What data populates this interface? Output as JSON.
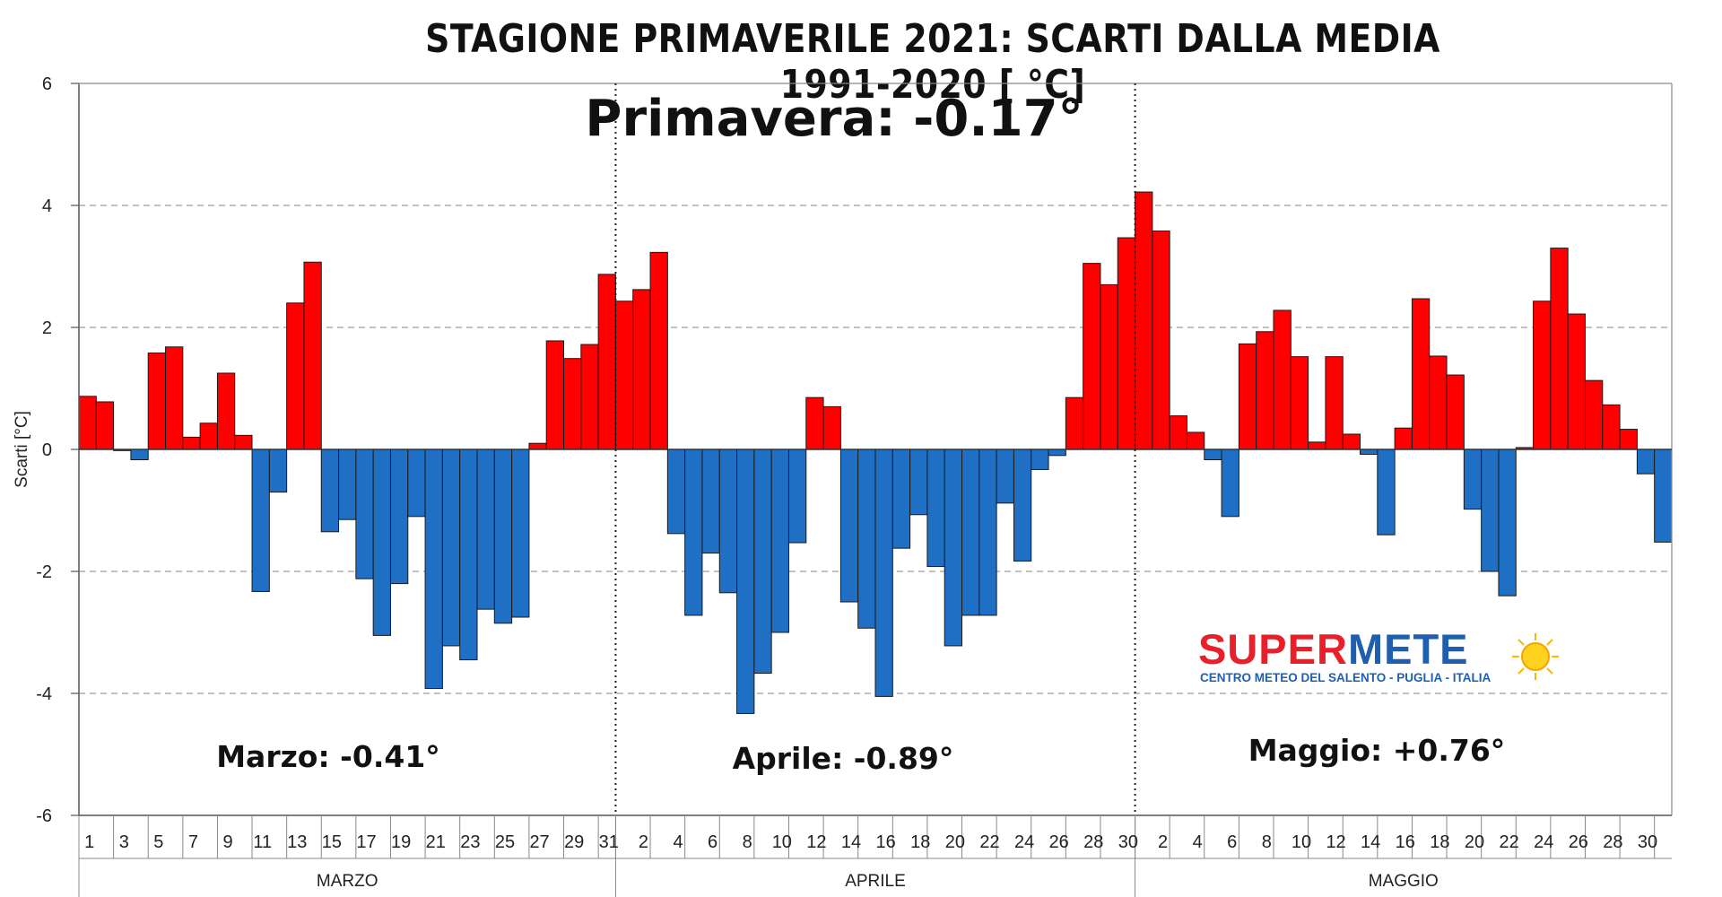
{
  "chart_data": {
    "type": "bar",
    "title": "STAGIONE PRIMAVERILE 2021: SCARTI DALLA MEDIA 1991-2020 [ °C]",
    "ylabel": "Scarti [°C]",
    "xlabel": "",
    "ylim": [
      -6,
      6
    ],
    "yticks": [
      -6,
      -4,
      -2,
      0,
      2,
      4,
      6
    ],
    "grid": "horizontal dashed",
    "positive_color": "#ff0000",
    "negative_color": "#1f6fc4",
    "months": [
      {
        "name": "MARZO",
        "summary": "Marzo: -0.41°",
        "day_labels": [
          "1",
          "3",
          "5",
          "7",
          "9",
          "11",
          "13",
          "15",
          "17",
          "19",
          "21",
          "23",
          "25",
          "27",
          "29",
          "31"
        ],
        "values": [
          0.87,
          0.78,
          -0.02,
          -0.17,
          1.58,
          1.68,
          0.2,
          0.43,
          1.25,
          0.23,
          -2.33,
          -0.7,
          2.4,
          3.07,
          -1.35,
          -1.15,
          -2.12,
          -3.05,
          -2.2,
          -1.1,
          -3.92,
          -3.22,
          -3.45,
          -2.62,
          -2.85,
          -2.75,
          0.1,
          1.78,
          1.49,
          1.72,
          2.87
        ]
      },
      {
        "name": "APRILE",
        "summary": "Aprile: -0.89°",
        "day_labels": [
          "2",
          "4",
          "6",
          "8",
          "10",
          "12",
          "14",
          "16",
          "18",
          "20",
          "22",
          "24",
          "26",
          "28",
          "30"
        ],
        "values": [
          2.43,
          2.62,
          3.23,
          -1.38,
          -2.72,
          -1.7,
          -2.35,
          -4.33,
          -3.67,
          -3.0,
          -1.53,
          0.85,
          0.7,
          -2.5,
          -2.93,
          -4.05,
          -1.62,
          -1.07,
          -1.92,
          -3.22,
          -2.72,
          -2.72,
          -0.88,
          -1.83,
          -0.33,
          -0.1,
          0.85,
          3.05,
          2.7,
          3.47
        ]
      },
      {
        "name": "MAGGIO",
        "summary": "Maggio: +0.76°",
        "day_labels": [
          "2",
          "4",
          "6",
          "8",
          "10",
          "12",
          "14",
          "16",
          "18",
          "20",
          "22",
          "24",
          "26",
          "28",
          "30"
        ],
        "values": [
          4.22,
          3.58,
          0.55,
          0.28,
          -0.17,
          -1.1,
          1.73,
          1.93,
          2.28,
          1.52,
          0.12,
          1.52,
          0.25,
          -0.08,
          -1.4,
          0.35,
          2.47,
          1.53,
          1.22,
          -0.98,
          -2.0,
          -2.4,
          0.03,
          2.43,
          3.3,
          2.22,
          1.13,
          0.73,
          0.33,
          -0.4,
          -1.52
        ]
      }
    ],
    "season_summary": "Primavera: -0.17°"
  },
  "logo": {
    "super": "SUPER",
    "meteo": "METE",
    "subtitle": "CENTRO METEO DEL SALENTO - PUGLIA - ITALIA"
  }
}
